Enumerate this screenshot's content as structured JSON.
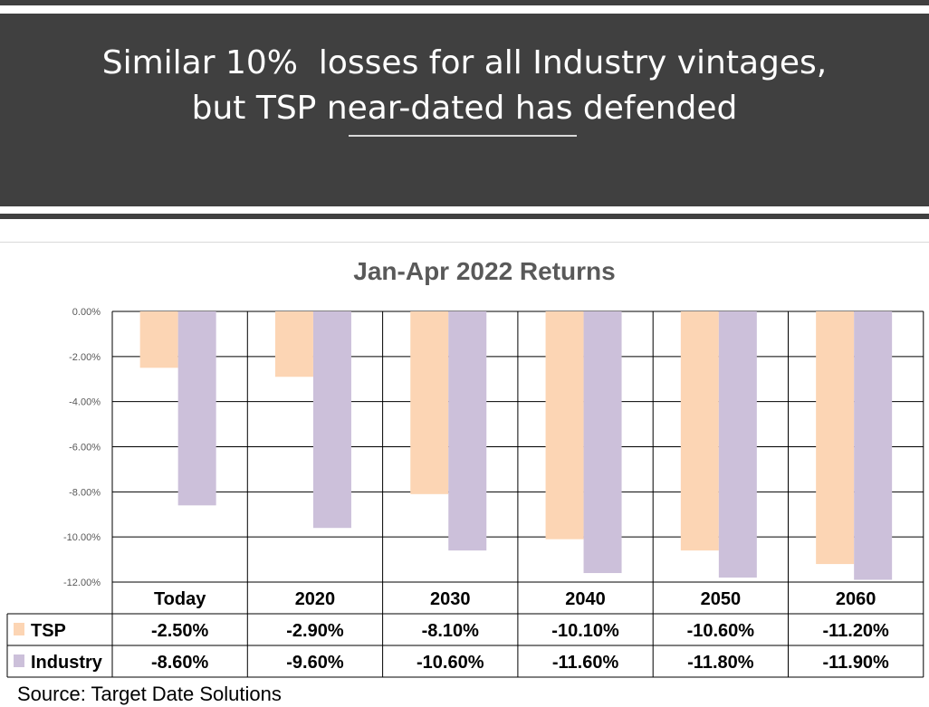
{
  "header": {
    "title_line1": "Similar 10%  losses for all Industry vintages,",
    "title_line2": "but TSP near-dated has defended"
  },
  "footer": {
    "source": "Source: Target Date Solutions"
  },
  "chart_data": {
    "type": "bar",
    "title": "Jan-Apr 2022 Returns",
    "categories": [
      "Today",
      "2020",
      "2030",
      "2040",
      "2050",
      "2060"
    ],
    "series": [
      {
        "name": "TSP",
        "values": [
          -2.5,
          -2.9,
          -8.1,
          -10.1,
          -10.6,
          -11.2
        ],
        "labels": [
          "-2.50%",
          "-2.90%",
          "-8.10%",
          "-10.10%",
          "-10.60%",
          "-11.20%"
        ],
        "color": "#fcd5b4"
      },
      {
        "name": "Industry",
        "values": [
          -8.6,
          -9.6,
          -10.6,
          -11.6,
          -11.8,
          -11.9
        ],
        "labels": [
          "-8.60%",
          "-9.60%",
          "-10.60%",
          "-11.60%",
          "-11.80%",
          "-11.90%"
        ],
        "color": "#ccc0da"
      }
    ],
    "yticks": [
      "0.00%",
      "-2.00%",
      "-4.00%",
      "-6.00%",
      "-8.00%",
      "-10.00%",
      "-12.00%"
    ],
    "ylim": [
      -12,
      0
    ],
    "grid": true,
    "data_table": true
  }
}
